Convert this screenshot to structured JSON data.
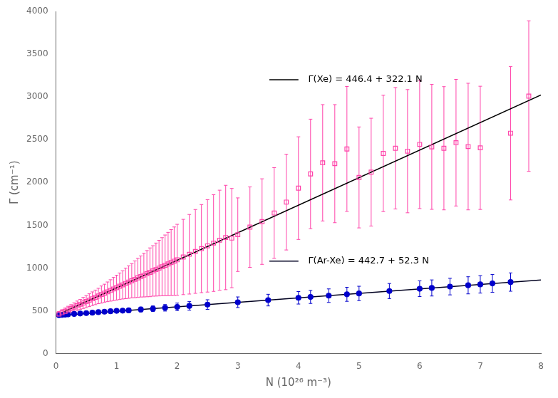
{
  "chart_data": {
    "type": "scatter",
    "x_label": "N (10²⁶ m⁻³)",
    "y_label": "Γ (cm⁻¹)",
    "xlim": [
      0,
      8
    ],
    "ylim": [
      0,
      4000
    ],
    "xticks": [
      0,
      1,
      2,
      3,
      4,
      5,
      6,
      7,
      8
    ],
    "yticks": [
      0,
      500,
      1000,
      1500,
      2000,
      2500,
      3000,
      3500,
      4000
    ],
    "grid": false,
    "series": [
      {
        "type": "scatter",
        "marker": "open square",
        "color": "#ff44aa",
        "x": [
          0.05,
          0.1,
          0.15,
          0.2,
          0.25,
          0.3,
          0.35,
          0.4,
          0.45,
          0.5,
          0.55,
          0.6,
          0.65,
          0.7,
          0.75,
          0.8,
          0.85,
          0.9,
          0.95,
          1.0,
          1.05,
          1.1,
          1.15,
          1.2,
          1.25,
          1.3,
          1.35,
          1.4,
          1.45,
          1.5,
          1.55,
          1.6,
          1.65,
          1.7,
          1.75,
          1.8,
          1.85,
          1.9,
          1.95,
          2.0,
          2.1,
          2.2,
          2.3,
          2.4,
          2.5,
          2.6,
          2.7,
          2.8,
          2.9,
          3.0,
          3.2,
          3.4,
          3.6,
          3.8,
          4.0,
          4.2,
          4.4,
          4.6,
          4.8,
          5.0,
          5.2,
          5.4,
          5.6,
          5.8,
          6.0,
          6.2,
          6.4,
          6.6,
          6.8,
          7.0,
          7.5,
          7.8
        ],
        "values": [
          462,
          478,
          494,
          511,
          527,
          543,
          559,
          576,
          592,
          608,
          624,
          641,
          657,
          673,
          690,
          706,
          722,
          738,
          755,
          771,
          787,
          803,
          820,
          836,
          852,
          868,
          885,
          901,
          917,
          934,
          950,
          966,
          982,
          999,
          1015,
          1031,
          1047,
          1064,
          1080,
          1096,
          1129,
          1161,
          1194,
          1227,
          1259,
          1292,
          1325,
          1357,
          1350,
          1390,
          1478,
          1543,
          1643,
          1771,
          1934,
          2100,
          2230,
          2220,
          2392,
          2059,
          2121,
          2340,
          2400,
          2366,
          2445,
          2416,
          2400,
          2465,
          2420,
          2405,
          2576,
          3010
        ],
        "errors": [
          30,
          35,
          38,
          42,
          45,
          50,
          55,
          58,
          65,
          70,
          75,
          80,
          85,
          90,
          100,
          105,
          115,
          125,
          135,
          145,
          155,
          165,
          178,
          190,
          200,
          215,
          228,
          240,
          255,
          270,
          285,
          295,
          310,
          325,
          340,
          355,
          370,
          385,
          400,
          415,
          440,
          465,
          490,
          515,
          540,
          565,
          585,
          610,
          580,
          430,
          470,
          500,
          530,
          560,
          600,
          640,
          680,
          690,
          730,
          590,
          630,
          680,
          710,
          720,
          750,
          730,
          720,
          740,
          740,
          720,
          780,
          880
        ]
      },
      {
        "type": "scatter",
        "marker": "circle",
        "color": "#0000cc",
        "x": [
          0.05,
          0.1,
          0.15,
          0.2,
          0.3,
          0.4,
          0.5,
          0.6,
          0.7,
          0.8,
          0.9,
          1.0,
          1.1,
          1.2,
          1.4,
          1.6,
          1.8,
          2.0,
          2.2,
          2.5,
          3.0,
          3.5,
          4.0,
          4.2,
          4.5,
          4.8,
          5.0,
          5.5,
          6.0,
          6.2,
          6.5,
          6.8,
          7.0,
          7.2,
          7.5
        ],
        "values": [
          448,
          452,
          455,
          458,
          463,
          468,
          473,
          478,
          484,
          490,
          495,
          500,
          502,
          505,
          515,
          524,
          535,
          546,
          557,
          573,
          600,
          625,
          652,
          662,
          677,
          693,
          703,
          731,
          758,
          767,
          783,
          798,
          809,
          820,
          836
        ],
        "errors": [
          8,
          8,
          9,
          9,
          10,
          11,
          12,
          13,
          14,
          16,
          18,
          20,
          22,
          24,
          28,
          33,
          38,
          44,
          50,
          56,
          62,
          68,
          73,
          76,
          79,
          82,
          84,
          88,
          92,
          94,
          97,
          100,
          102,
          104,
          107
        ]
      },
      {
        "type": "line",
        "line_style": "solid",
        "color": "#000000",
        "x": [
          0,
          8
        ],
        "values": [
          446.4,
          3023.2
        ]
      },
      {
        "type": "line",
        "line_style": "solid",
        "color": "#000020",
        "x": [
          0,
          8
        ],
        "values": [
          442.7,
          861.1
        ]
      }
    ],
    "annotations": [
      "Γ(Xe) = 446.4 + 322.1 N",
      "Γ(Ar-Xe) = 442.7 + 52.3 N"
    ]
  }
}
